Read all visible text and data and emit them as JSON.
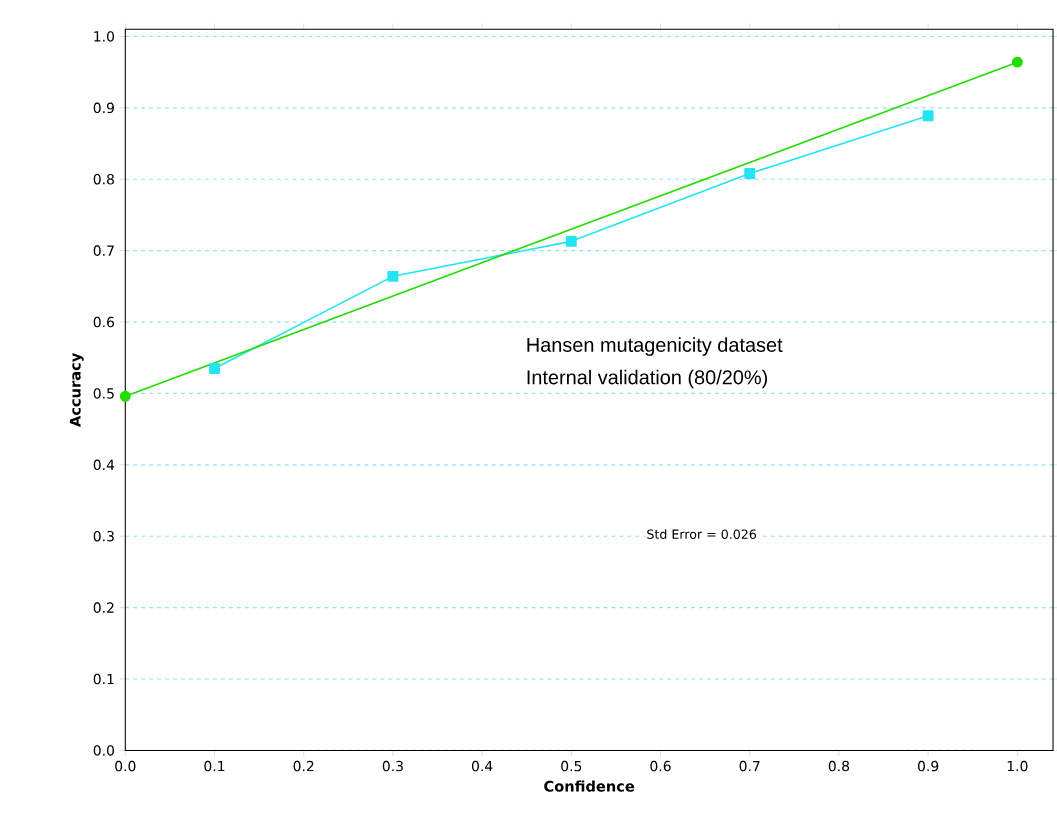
{
  "chart_data": {
    "type": "line",
    "xlabel": "Confidence",
    "ylabel": "Accuracy",
    "xlim": [
      0,
      1.04
    ],
    "ylim": [
      0,
      1.01
    ],
    "xticks": [
      {
        "value": 0,
        "label": "0.0"
      },
      0.1,
      0.2,
      0.3,
      0.4,
      0.5,
      0.6,
      0.7,
      0.8,
      0.9,
      {
        "value": 1,
        "label": "1.0"
      }
    ],
    "yticks": [
      {
        "value": 0,
        "label": "0.0"
      },
      0.1,
      0.2,
      0.3,
      0.4,
      0.5,
      0.6,
      0.7,
      0.8,
      0.9,
      {
        "value": 1,
        "label": "1.0"
      }
    ],
    "grid": "y",
    "series": [
      {
        "color": "#22e4f2",
        "marker": "square",
        "x": [
          0.1,
          0.3,
          0.5,
          0.7,
          0.9
        ],
        "values": [
          0.535,
          0.664,
          0.713,
          0.808,
          0.889
        ]
      },
      {
        "color": "#22dd00",
        "marker": "circle",
        "x": [
          0,
          1
        ],
        "values": [
          0.496,
          0.964
        ]
      }
    ],
    "annotations": [
      "Hansen mutagenicity dataset",
      "Internal validation (80/20%)",
      "Std Error = 0.026"
    ]
  }
}
